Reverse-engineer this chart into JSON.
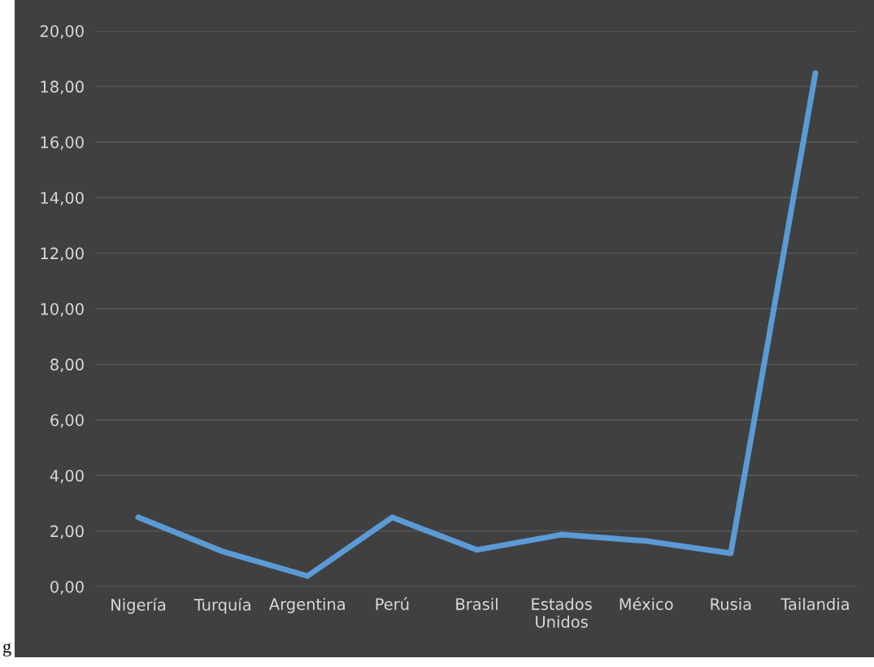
{
  "chart_data": {
    "type": "line",
    "categories": [
      "Nigería",
      "Turquía",
      "Argentina",
      "Perú",
      "Brasil",
      "Estados\nUnidos",
      "México",
      "Rusia",
      "Tailandia"
    ],
    "series": [
      {
        "color": "#5b9bd5",
        "values": [
          2.49,
          1.26,
          0.38,
          2.49,
          1.32,
          1.87,
          1.64,
          1.2,
          18.48
        ]
      }
    ],
    "ylim": [
      0,
      20
    ],
    "yticks": [
      {
        "value": 0,
        "label": "0,00"
      },
      {
        "value": 2,
        "label": "2,00"
      },
      {
        "value": 4,
        "label": "4,00"
      },
      {
        "value": 6,
        "label": "6,00"
      },
      {
        "value": 8,
        "label": "8,00"
      },
      {
        "value": 10,
        "label": "10,00"
      },
      {
        "value": 12,
        "label": "12,00"
      },
      {
        "value": 14,
        "label": "14,00"
      },
      {
        "value": 16,
        "label": "16,00"
      },
      {
        "value": 18,
        "label": "18,00"
      },
      {
        "value": 20,
        "label": "20,00"
      }
    ],
    "grid": "y",
    "marker": "none",
    "line_style": "solid",
    "annotations": [
      "g"
    ]
  }
}
